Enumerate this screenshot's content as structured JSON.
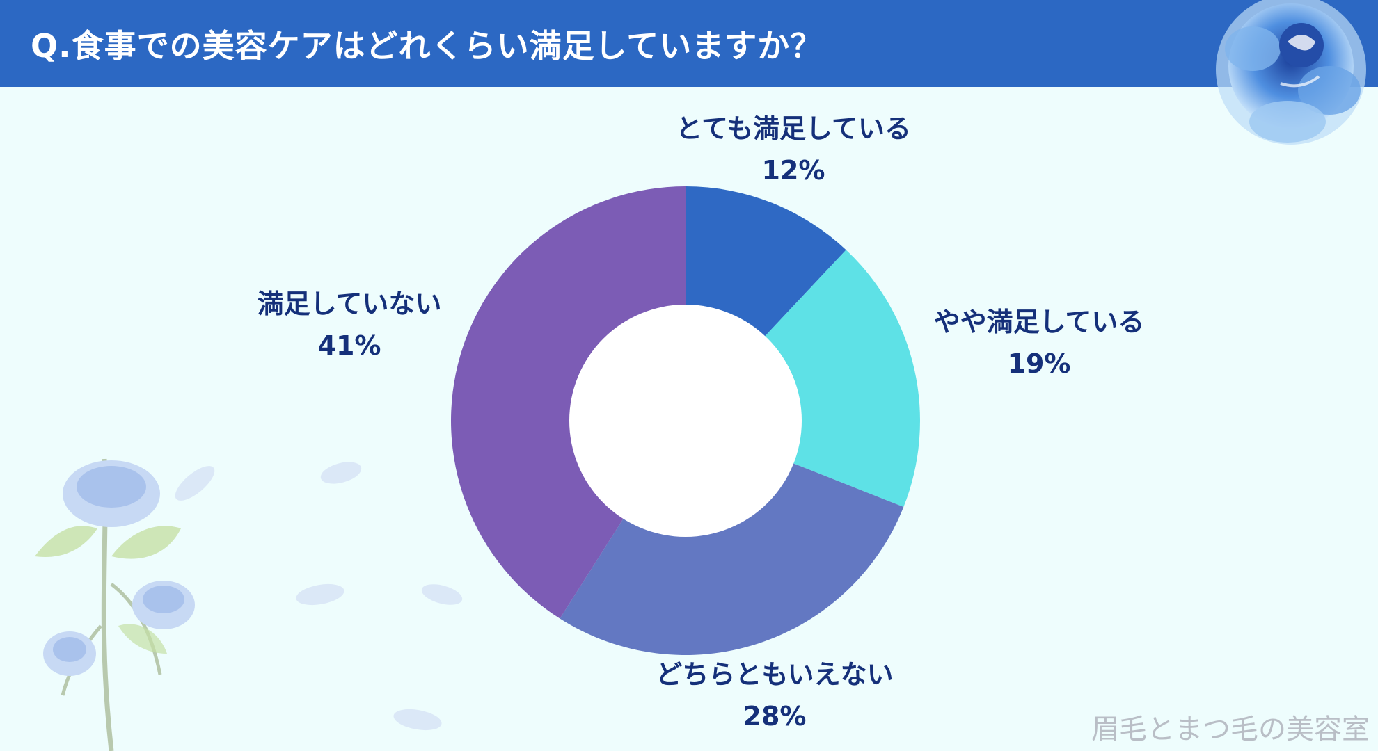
{
  "header": {
    "title": "Q.食事での美容ケアはどれくらい満足していますか？"
  },
  "watermark": "眉毛とまつ毛の美容室",
  "decor": {
    "top_right": "blue-rose-icon",
    "bottom_left": "blue-rose-branch-icon"
  },
  "chart_data": {
    "type": "pie",
    "donut": true,
    "title": "",
    "slices": [
      {
        "label": "とても満足している",
        "value": 12,
        "display": "12%",
        "color": "#2f69c4"
      },
      {
        "label": "やや満足している",
        "value": 19,
        "display": "19%",
        "color": "#5ee1e6"
      },
      {
        "label": "どちらともいえない",
        "value": 28,
        "display": "28%",
        "color": "#6378c2"
      },
      {
        "label": "満足していない",
        "value": 41,
        "display": "41%",
        "color": "#7c5cb5"
      }
    ]
  }
}
